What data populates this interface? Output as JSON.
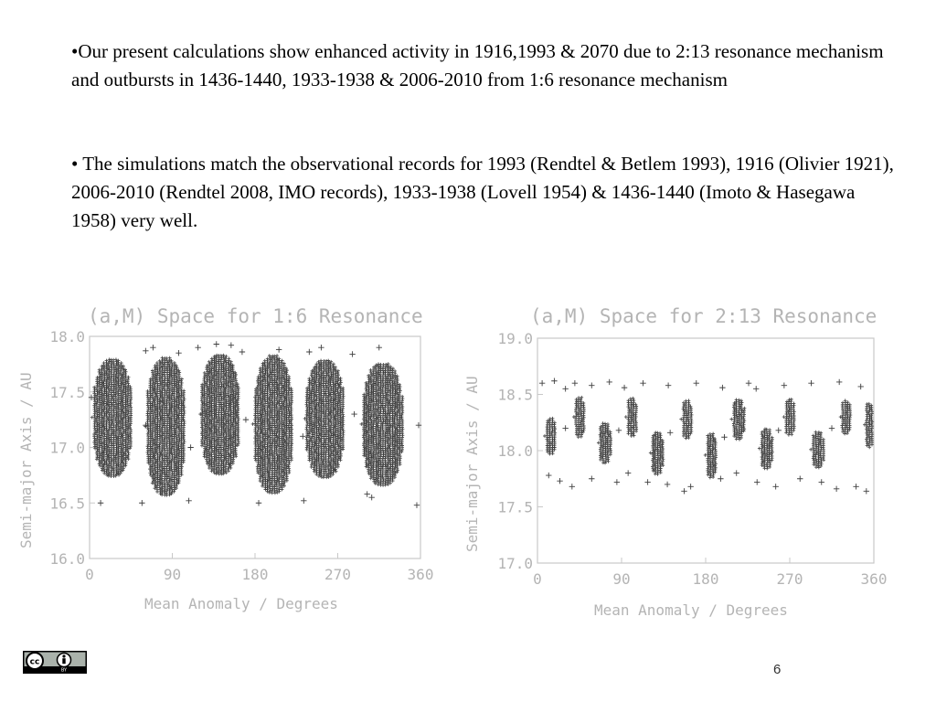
{
  "text": {
    "para1": "•Our present calculations show enhanced activity in 1916,1993 & 2070 due to 2:13 resonance mechanism  and outbursts in 1436-1440, 1933-1938 & 2006-2010 from 1:6 resonance mechanism",
    "para2": "•  The simulations match the observational records for 1993 (Rendtel & Betlem 1993), 1916 (Olivier 1921), 2006-2010 (Rendtel 2008, IMO records), 1933-1938 (Lovell 1954) & 1436-1440 (Imoto & Hasegawa 1958) very well."
  },
  "footer": {
    "page_number": "6",
    "license_badge": "cc-by-license-icon"
  },
  "colors": {
    "chart_text": "#b4b4b4",
    "chart_frame": "#c8c8c8",
    "marker": "#2a2a2a"
  },
  "chart_data": [
    {
      "type": "scatter",
      "title": "(a,M) Space for 1:6 Resonance",
      "xlabel": "Mean Anomaly / Degrees",
      "ylabel": "Semi-major Axis / AU",
      "xlim": [
        0,
        360
      ],
      "ylim": [
        16.0,
        18.0
      ],
      "xticks": [
        "0",
        "90",
        "180",
        "270",
        "360"
      ],
      "yticks": [
        "16.0",
        "16.5",
        "17.0",
        "17.5",
        "18.0"
      ],
      "marker": "+",
      "grid": false,
      "clusters": [
        {
          "center_x": 25,
          "center_y": 17.27,
          "half_width": 22,
          "half_height": 0.53
        },
        {
          "center_x": 83,
          "center_y": 17.19,
          "half_width": 22,
          "half_height": 0.62
        },
        {
          "center_x": 142,
          "center_y": 17.3,
          "half_width": 22,
          "half_height": 0.54
        },
        {
          "center_x": 200,
          "center_y": 17.21,
          "half_width": 22,
          "half_height": 0.62
        },
        {
          "center_x": 256,
          "center_y": 17.26,
          "half_width": 22,
          "half_height": 0.53
        },
        {
          "center_x": 319,
          "center_y": 17.21,
          "half_width": 23,
          "half_height": 0.55
        }
      ],
      "scattered_points": [
        {
          "x": 61,
          "y": 17.87
        },
        {
          "x": 69,
          "y": 17.9
        },
        {
          "x": 97,
          "y": 17.85
        },
        {
          "x": 118,
          "y": 17.9
        },
        {
          "x": 138,
          "y": 17.93
        },
        {
          "x": 154,
          "y": 17.92
        },
        {
          "x": 166,
          "y": 17.86
        },
        {
          "x": 206,
          "y": 17.88
        },
        {
          "x": 239,
          "y": 17.86
        },
        {
          "x": 252,
          "y": 17.9
        },
        {
          "x": 286,
          "y": 17.84
        },
        {
          "x": 315,
          "y": 17.9
        },
        {
          "x": 12,
          "y": 16.5
        },
        {
          "x": 57,
          "y": 16.5
        },
        {
          "x": 108,
          "y": 16.52
        },
        {
          "x": 184,
          "y": 16.5
        },
        {
          "x": 233,
          "y": 16.52
        },
        {
          "x": 302,
          "y": 16.58
        },
        {
          "x": 307,
          "y": 16.55
        },
        {
          "x": 356,
          "y": 16.48
        },
        {
          "x": 2,
          "y": 17.45
        },
        {
          "x": 61,
          "y": 17.2
        },
        {
          "x": 110,
          "y": 17.0
        },
        {
          "x": 170,
          "y": 17.25
        },
        {
          "x": 232,
          "y": 17.1
        },
        {
          "x": 288,
          "y": 17.3
        },
        {
          "x": 358,
          "y": 17.2
        }
      ]
    },
    {
      "type": "scatter",
      "title": "(a,M) Space for 2:13 Resonance",
      "xlabel": "Mean Anomaly / Degrees",
      "ylabel": "Semi-major Axis / AU",
      "xlim": [
        0,
        360
      ],
      "ylim": [
        17.0,
        19.0
      ],
      "xticks": [
        "0",
        "90",
        "180",
        "270",
        "360"
      ],
      "yticks": [
        "17.0",
        "17.5",
        "18.0",
        "18.5",
        "19.0"
      ],
      "marker": "+",
      "grid": false,
      "clusters": [
        {
          "center_x": 14,
          "center_y": 18.13,
          "half_width": 6,
          "half_height": 0.16
        },
        {
          "center_x": 45,
          "center_y": 18.3,
          "half_width": 6,
          "half_height": 0.18
        },
        {
          "center_x": 72,
          "center_y": 18.07,
          "half_width": 7,
          "half_height": 0.18
        },
        {
          "center_x": 101,
          "center_y": 18.3,
          "half_width": 6,
          "half_height": 0.17
        },
        {
          "center_x": 128,
          "center_y": 17.98,
          "half_width": 7,
          "half_height": 0.19
        },
        {
          "center_x": 160,
          "center_y": 18.28,
          "half_width": 6,
          "half_height": 0.17
        },
        {
          "center_x": 186,
          "center_y": 17.96,
          "half_width": 6,
          "half_height": 0.2
        },
        {
          "center_x": 215,
          "center_y": 18.28,
          "half_width": 7,
          "half_height": 0.18
        },
        {
          "center_x": 245,
          "center_y": 18.02,
          "half_width": 7,
          "half_height": 0.18
        },
        {
          "center_x": 270,
          "center_y": 18.3,
          "half_width": 6,
          "half_height": 0.16
        },
        {
          "center_x": 300,
          "center_y": 18.01,
          "half_width": 7,
          "half_height": 0.16
        },
        {
          "center_x": 330,
          "center_y": 18.3,
          "half_width": 6,
          "half_height": 0.15
        },
        {
          "center_x": 355,
          "center_y": 18.23,
          "half_width": 5,
          "half_height": 0.2
        }
      ],
      "scattered_points": [
        {
          "x": 5,
          "y": 18.6
        },
        {
          "x": 18,
          "y": 18.62
        },
        {
          "x": 30,
          "y": 18.55
        },
        {
          "x": 40,
          "y": 18.6
        },
        {
          "x": 58,
          "y": 18.58
        },
        {
          "x": 77,
          "y": 18.61
        },
        {
          "x": 93,
          "y": 18.56
        },
        {
          "x": 113,
          "y": 18.6
        },
        {
          "x": 140,
          "y": 18.58
        },
        {
          "x": 170,
          "y": 18.6
        },
        {
          "x": 198,
          "y": 18.56
        },
        {
          "x": 226,
          "y": 18.6
        },
        {
          "x": 234,
          "y": 18.55
        },
        {
          "x": 264,
          "y": 18.58
        },
        {
          "x": 293,
          "y": 18.6
        },
        {
          "x": 323,
          "y": 18.61
        },
        {
          "x": 346,
          "y": 18.57
        },
        {
          "x": 12,
          "y": 17.78
        },
        {
          "x": 24,
          "y": 17.73
        },
        {
          "x": 37,
          "y": 17.68
        },
        {
          "x": 58,
          "y": 17.75
        },
        {
          "x": 85,
          "y": 17.72
        },
        {
          "x": 97,
          "y": 17.8
        },
        {
          "x": 118,
          "y": 17.72
        },
        {
          "x": 139,
          "y": 17.7
        },
        {
          "x": 157,
          "y": 17.64
        },
        {
          "x": 164,
          "y": 17.68
        },
        {
          "x": 196,
          "y": 17.75
        },
        {
          "x": 213,
          "y": 17.8
        },
        {
          "x": 235,
          "y": 17.72
        },
        {
          "x": 255,
          "y": 17.68
        },
        {
          "x": 281,
          "y": 17.75
        },
        {
          "x": 304,
          "y": 17.72
        },
        {
          "x": 320,
          "y": 17.66
        },
        {
          "x": 341,
          "y": 17.68
        },
        {
          "x": 352,
          "y": 17.64
        },
        {
          "x": 30,
          "y": 18.2
        },
        {
          "x": 87,
          "y": 18.18
        },
        {
          "x": 142,
          "y": 18.16
        },
        {
          "x": 200,
          "y": 18.12
        },
        {
          "x": 258,
          "y": 18.18
        },
        {
          "x": 315,
          "y": 18.2
        }
      ]
    }
  ]
}
